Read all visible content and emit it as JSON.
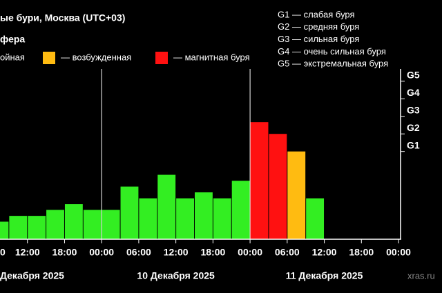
{
  "chart_data": {
    "type": "bar",
    "title": "ые бури, Москва (UTC+03)",
    "subtitle": "фера",
    "legend": [
      {
        "name": "ойная",
        "color": "#33ee22"
      },
      {
        "name": "— возбужденная",
        "color": "#ffbb11"
      },
      {
        "name": "— магнитная буря",
        "color": "#ff1111"
      }
    ],
    "scale_legend": [
      "G1 — слабая буря",
      "G2 — средняя буря",
      "G3 — сильная буря",
      "G4 — очень сильная буря",
      "G5 — экстремальная буря"
    ],
    "x": [
      6,
      9,
      12,
      15,
      18,
      21,
      24,
      27,
      30,
      33,
      36,
      39,
      42,
      45,
      48,
      51,
      54,
      57
    ],
    "values": [
      1,
      1.33,
      1.33,
      1.67,
      2,
      1.67,
      1.67,
      3,
      2.33,
      3.67,
      2.33,
      2.67,
      2.33,
      3.33,
      6.67,
      6,
      5,
      2.33
    ],
    "colors": [
      "#33ee22",
      "#33ee22",
      "#33ee22",
      "#33ee22",
      "#33ee22",
      "#33ee22",
      "#33ee22",
      "#33ee22",
      "#33ee22",
      "#33ee22",
      "#33ee22",
      "#33ee22",
      "#33ee22",
      "#33ee22",
      "#ff1111",
      "#ff1111",
      "#ffbb11",
      "#33ee22"
    ],
    "xlim": [
      6,
      72
    ],
    "xticks": [
      {
        "value": 6,
        "label": "0"
      },
      {
        "value": 12,
        "label": "12:00"
      },
      {
        "value": 18,
        "label": "18:00"
      },
      {
        "value": 24,
        "label": "00:00"
      },
      {
        "value": 30,
        "label": "06:00"
      },
      {
        "value": 36,
        "label": "12:00"
      },
      {
        "value": 42,
        "label": "18:00"
      },
      {
        "value": 48,
        "label": "00:00"
      },
      {
        "value": 54,
        "label": "06:00"
      },
      {
        "value": 60,
        "label": "12:00"
      },
      {
        "value": 66,
        "label": "18:00"
      },
      {
        "value": 72,
        "label": "00:00"
      }
    ],
    "days": [
      {
        "value": 0,
        "label": "Декабря 2025"
      },
      {
        "value": 36,
        "label": "10 Декабря 2025"
      },
      {
        "value": 60,
        "label": "11 Декабря 2025"
      }
    ],
    "day_lines": [
      24,
      48
    ],
    "ylim": [
      0,
      9.7
    ],
    "yticks": [
      {
        "value": 5,
        "label": "G1"
      },
      {
        "value": 6,
        "label": "G2"
      },
      {
        "value": 7,
        "label": "G3"
      },
      {
        "value": 8,
        "label": "G4"
      },
      {
        "value": 9,
        "label": "G5"
      }
    ],
    "watermark": "xras.ru"
  }
}
